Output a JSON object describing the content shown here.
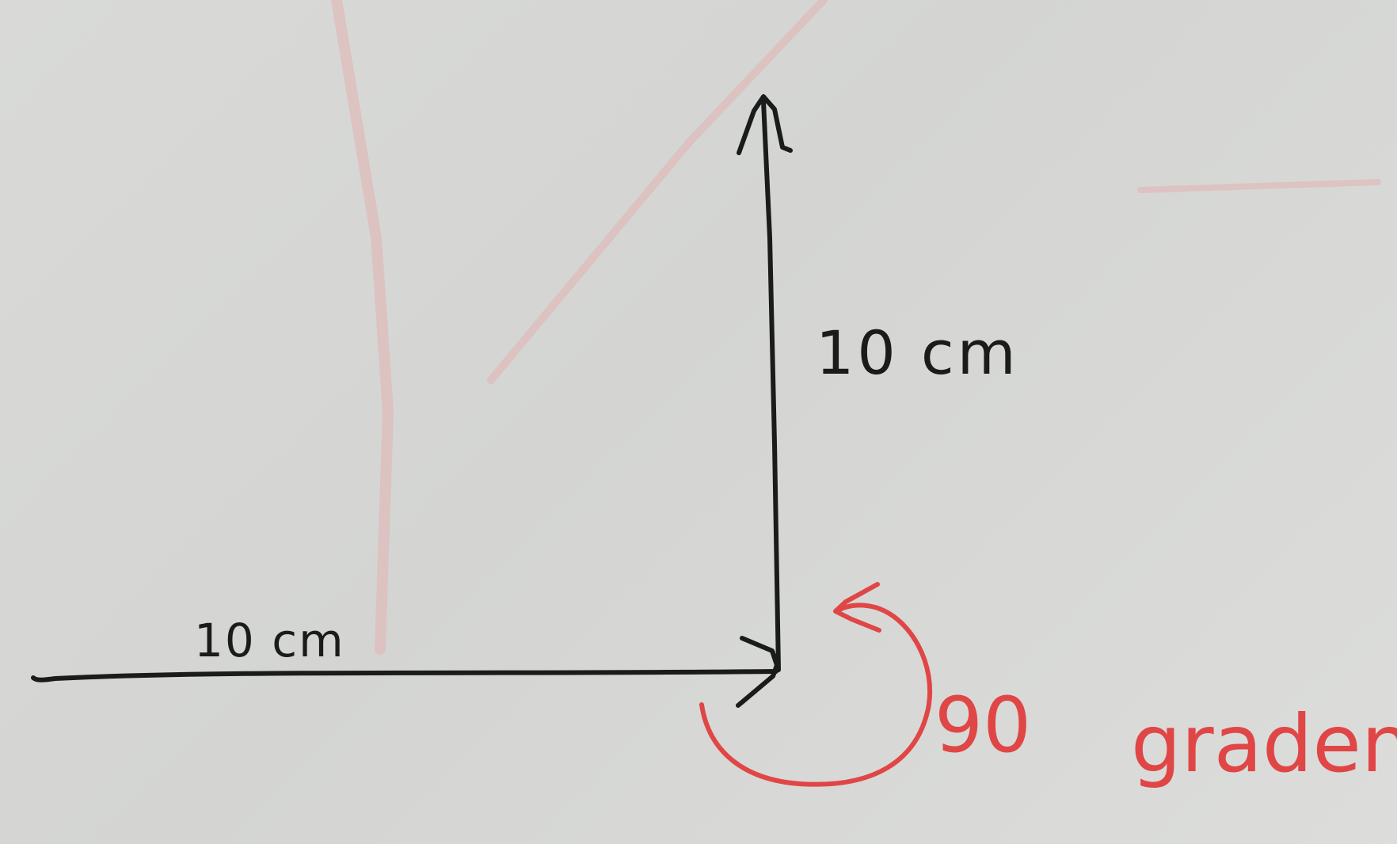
{
  "labels": {
    "horizontal_length": "10 cm",
    "vertical_length": "10 cm",
    "turn_angle": "90",
    "turn_unit": "graden"
  },
  "colors": {
    "board": "#d6d7d5",
    "black_marker": "#1a1c1b",
    "red_marker": "#e04646",
    "faded_ghost": "#e2b3b0"
  }
}
